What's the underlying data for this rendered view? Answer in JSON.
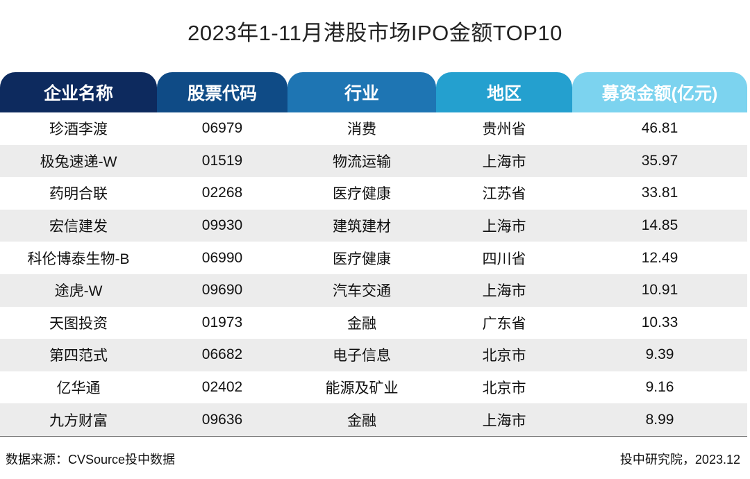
{
  "title": "2023年1-11月港股市场IPO金额TOP10",
  "headers": [
    "企业名称",
    "股票代码",
    "行业",
    "地区",
    "募资金额(亿元)"
  ],
  "header_colors": [
    "#0d2a5e",
    "#0f4b86",
    "#1e75b3",
    "#24a0cf",
    "#7cd3ef"
  ],
  "rows": [
    [
      "珍酒李渡",
      "06979",
      "消费",
      "贵州省",
      "46.81"
    ],
    [
      "极兔速递-W",
      "01519",
      "物流运输",
      "上海市",
      "35.97"
    ],
    [
      "药明合联",
      "02268",
      "医疗健康",
      "江苏省",
      "33.81"
    ],
    [
      "宏信建发",
      "09930",
      "建筑建材",
      "上海市",
      "14.85"
    ],
    [
      "科伦博泰生物-B",
      "06990",
      "医疗健康",
      "四川省",
      "12.49"
    ],
    [
      "途虎-W",
      "09690",
      "汽车交通",
      "上海市",
      "10.91"
    ],
    [
      "天图投资",
      "01973",
      "金融",
      "广东省",
      "10.33"
    ],
    [
      "第四范式",
      "06682",
      "电子信息",
      "北京市",
      "9.39"
    ],
    [
      "亿华通",
      "02402",
      "能源及矿业",
      "北京市",
      "9.16"
    ],
    [
      "九方财富",
      "09636",
      "金融",
      "上海市",
      "8.99"
    ]
  ],
  "footer": {
    "source": "数据来源：CVSource投中数据",
    "credit": "投中研究院，2023.12"
  }
}
